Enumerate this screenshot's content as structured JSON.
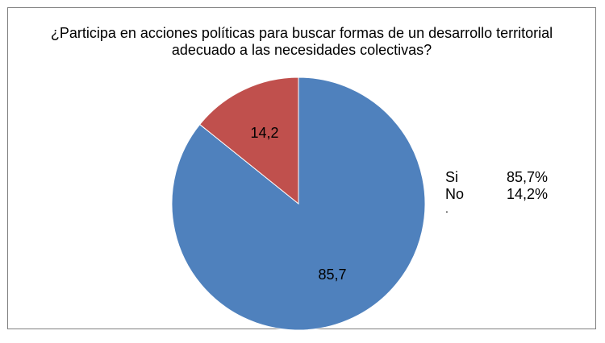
{
  "chart_data": {
    "type": "pie",
    "title_lines": [
      "¿Participa en acciones políticas para buscar formas de un desarrollo territorial",
      "adecuado a las necesidades colectivas?"
    ],
    "slices": [
      {
        "name": "Si",
        "value": 85.7,
        "data_label": "85,7",
        "color": "#4f81bd",
        "legend_value": "85,7%"
      },
      {
        "name": "No",
        "value": 14.2,
        "data_label": "14,2",
        "color": "#c0504d",
        "legend_value": "14,2%"
      }
    ],
    "legend_extra": ".",
    "legend_position": "right"
  }
}
